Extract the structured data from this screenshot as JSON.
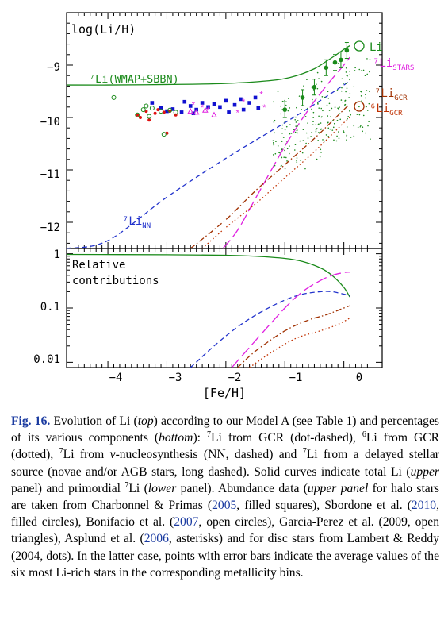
{
  "colors": {
    "total": "#1a8a1a",
    "nn": "#2233cc",
    "stars": "#e020e0",
    "gcr7": "#a03000",
    "gcr6": "#c03000",
    "halo_squares": "#1010d0",
    "red_dots": "#e01010",
    "caption_link": "#1a3aa0"
  },
  "chart_data": [
    {
      "type": "line",
      "panel": "top",
      "xlabel": "[Fe/H]",
      "ylabel": "log(Li/H)",
      "xlim": [
        -4.7,
        0.65
      ],
      "ylim": [
        -12.5,
        -8.0
      ],
      "x_ticks": [
        "-4",
        "-3",
        "-2",
        "-1",
        "0"
      ],
      "y_ticks": [
        "-9",
        "-10",
        "-11",
        "-12"
      ],
      "series": [
        {
          "name": "⁷Li(WMAP+SBBN)",
          "style": "solid",
          "color": "#1a8a1a",
          "x": [
            -4.7,
            -4.0,
            -3.0,
            -2.0,
            -1.2,
            -0.8,
            -0.5,
            -0.3,
            -0.1,
            0.0,
            0.1
          ],
          "y": [
            -9.38,
            -9.38,
            -9.37,
            -9.35,
            -9.29,
            -9.2,
            -9.07,
            -8.93,
            -8.78,
            -8.7,
            -8.63
          ]
        },
        {
          "name": "⁷Li_NN",
          "style": "dashed",
          "color": "#2233cc",
          "x": [
            -4.7,
            -4.0,
            -3.0,
            -2.0,
            -1.0,
            -0.5,
            0.0,
            0.1
          ],
          "y": [
            -12.75,
            -12.35,
            -11.52,
            -10.78,
            -10.1,
            -9.75,
            -9.38,
            -9.3
          ]
        },
        {
          "name": "⁷Li_STARS",
          "style": "longdash",
          "color": "#e020e0",
          "x": [
            -2.05,
            -1.8,
            -1.5,
            -1.0,
            -0.6,
            -0.3,
            0.0,
            0.1
          ],
          "y": [
            -12.5,
            -12.15,
            -11.55,
            -10.55,
            -9.85,
            -9.4,
            -9.0,
            -8.85
          ]
        },
        {
          "name": "⁷Li_GCR",
          "style": "dotdash",
          "color": "#a03000",
          "x": [
            -2.6,
            -2.0,
            -1.5,
            -1.0,
            -0.5,
            0.0,
            0.1
          ],
          "y": [
            -12.5,
            -11.95,
            -11.4,
            -10.9,
            -10.4,
            -9.85,
            -9.75
          ]
        },
        {
          "name": "⁶Li_GCR",
          "style": "dotted",
          "color": "#c03000",
          "x": [
            -2.4,
            -2.0,
            -1.5,
            -1.0,
            -0.5,
            0.0,
            0.1
          ],
          "y": [
            -12.5,
            -12.1,
            -11.65,
            -11.15,
            -10.65,
            -10.1,
            -10.0
          ]
        }
      ],
      "data_sets": [
        {
          "name": "Charbonnel & Primas (2005)",
          "marker": "filled-square",
          "points": [
            [
              -3.25,
              -9.72
            ],
            [
              -3.1,
              -9.82
            ],
            [
              -3.0,
              -9.88
            ],
            [
              -2.9,
              -9.84
            ],
            [
              -2.75,
              -9.9
            ],
            [
              -2.6,
              -9.78
            ],
            [
              -2.5,
              -9.85
            ],
            [
              -2.4,
              -9.72
            ],
            [
              -2.3,
              -9.8
            ],
            [
              -2.2,
              -9.74
            ],
            [
              -2.1,
              -9.8
            ],
            [
              -2.0,
              -9.68
            ],
            [
              -1.95,
              -9.9
            ],
            [
              -1.85,
              -9.76
            ],
            [
              -1.75,
              -9.65
            ],
            [
              -1.7,
              -9.85
            ],
            [
              -1.6,
              -9.72
            ],
            [
              -1.5,
              -9.62
            ],
            [
              -1.45,
              -9.82
            ],
            [
              -2.7,
              -9.7
            ],
            [
              -2.55,
              -9.92
            ]
          ]
        },
        {
          "name": "Sbordone et al. (2010)",
          "marker": "filled-circle",
          "points": [
            [
              -3.5,
              -9.95
            ],
            [
              -3.45,
              -10.0
            ],
            [
              -3.35,
              -9.88
            ],
            [
              -3.3,
              -10.05
            ],
            [
              -3.2,
              -9.92
            ],
            [
              -3.15,
              -9.85
            ],
            [
              -3.05,
              -9.9
            ],
            [
              -3.0,
              -10.3
            ],
            [
              -2.95,
              -9.88
            ],
            [
              -2.85,
              -9.95
            ]
          ]
        },
        {
          "name": "Bonifacio et al. (2007)",
          "marker": "open-circle",
          "points": [
            [
              -3.9,
              -9.62
            ],
            [
              -3.5,
              -9.95
            ],
            [
              -3.4,
              -9.85
            ],
            [
              -3.3,
              -9.98
            ],
            [
              -3.25,
              -9.82
            ],
            [
              -3.1,
              -9.88
            ],
            [
              -3.05,
              -10.32
            ],
            [
              -2.95,
              -9.86
            ],
            [
              -2.85,
              -9.9
            ],
            [
              -3.35,
              -9.78
            ]
          ]
        },
        {
          "name": "Garcia-Perez et al. (2009)",
          "marker": "open-triangle",
          "points": [
            [
              -2.2,
              -9.95
            ],
            [
              -2.35,
              -9.86
            ],
            [
              -2.5,
              -9.9
            ],
            [
              -2.6,
              -9.88
            ]
          ]
        },
        {
          "name": "Asplund et al. (2006)",
          "marker": "asterisk",
          "points": [
            [
              -2.55,
              -9.75
            ],
            [
              -2.3,
              -9.85
            ],
            [
              -1.7,
              -9.7
            ],
            [
              -1.4,
              -9.55
            ],
            [
              -1.35,
              -9.8
            ],
            [
              -1.8,
              -9.9
            ],
            [
              -2.4,
              -9.8
            ]
          ]
        },
        {
          "name": "Lambert & Reddy (2004)",
          "marker": "dot",
          "note": "disc stars, cloud of points between [Fe/H] -1.2 and 0.4"
        },
        {
          "name": "Most Li-rich averages",
          "marker": "filled-circle-errorbar",
          "points": [
            [
              -1.0,
              -9.85
            ],
            [
              -0.7,
              -9.62
            ],
            [
              -0.5,
              -9.42
            ],
            [
              -0.3,
              -9.05
            ],
            [
              -0.15,
              -8.95
            ],
            [
              -0.05,
              -8.9
            ],
            [
              0.05,
              -8.72
            ]
          ]
        }
      ],
      "annotations": [
        {
          "text": "⁷Li(WMAP+SBBN)"
        },
        {
          "text": "Li",
          "marker": "open-circle"
        },
        {
          "text": "⁷Li",
          "sub": "STARS"
        },
        {
          "text": "⁷Li",
          "sub": "GCR"
        },
        {
          "text": "⁶Li",
          "sub": "GCR",
          "marker": "open-circle"
        },
        {
          "text": "⁷Li",
          "sub": "NN"
        }
      ]
    },
    {
      "type": "line",
      "panel": "bottom",
      "xlabel": "[Fe/H]",
      "ylabel": "",
      "scale": "log",
      "xlim": [
        -4.7,
        0.65
      ],
      "ylim": [
        0.008,
        1.25
      ],
      "y_ticks": [
        "1",
        "0.1",
        "0.01"
      ],
      "series": [
        {
          "name": "primordial ⁷Li",
          "style": "solid",
          "color": "#1a8a1a",
          "x": [
            -4.7,
            -3.0,
            -2.0,
            -1.5,
            -1.0,
            -0.7,
            -0.4,
            -0.2,
            0.0,
            0.1
          ],
          "y": [
            0.97,
            0.96,
            0.94,
            0.9,
            0.82,
            0.72,
            0.55,
            0.4,
            0.24,
            0.16
          ]
        },
        {
          "name": "⁷Li_NN",
          "style": "dashed",
          "color": "#2233cc",
          "x": [
            -2.6,
            -2.2,
            -1.8,
            -1.4,
            -1.0,
            -0.7,
            -0.4,
            -0.2,
            0.0,
            0.1
          ],
          "y": [
            0.008,
            0.02,
            0.045,
            0.085,
            0.14,
            0.18,
            0.2,
            0.2,
            0.18,
            0.17
          ]
        },
        {
          "name": "⁷Li_STARS",
          "style": "longdash",
          "color": "#e020e0",
          "x": [
            -1.9,
            -1.5,
            -1.0,
            -0.7,
            -0.4,
            -0.2,
            0.0,
            0.1
          ],
          "y": [
            0.008,
            0.025,
            0.1,
            0.2,
            0.32,
            0.4,
            0.45,
            0.46
          ]
        },
        {
          "name": "⁷Li_GCR",
          "style": "dotdash",
          "color": "#a03000",
          "x": [
            -1.8,
            -1.5,
            -1.0,
            -0.6,
            -0.3,
            0.0,
            0.1
          ],
          "y": [
            0.008,
            0.016,
            0.038,
            0.06,
            0.075,
            0.1,
            0.11
          ]
        },
        {
          "name": "⁶Li_GCR",
          "style": "dotted",
          "color": "#c03000",
          "x": [
            -1.6,
            -1.2,
            -0.8,
            -0.4,
            -0.1,
            0.1
          ],
          "y": [
            0.008,
            0.016,
            0.028,
            0.038,
            0.05,
            0.065
          ]
        }
      ]
    }
  ],
  "figure": {
    "top_ylabel": "log(Li/H)",
    "bottom_label_line1": "Relative",
    "bottom_label_line2": "contributions",
    "xlabel": "[Fe/H]",
    "x_ticks": [
      "−4",
      "−3",
      "−2",
      "−1",
      "0"
    ],
    "top_y_ticks": [
      "−9",
      "−10",
      "−11",
      "−12"
    ],
    "bottom_y_ticks": [
      "1",
      "0.1",
      "0.01"
    ],
    "label_wmap": "⁷Li(WMAP+SBBN)",
    "label_li": "Li",
    "label_stars_main": "⁷Li",
    "label_stars_sub": "STARS",
    "label_gcr7_main": "⁷Li",
    "label_gcr7_sub": "GCR",
    "label_gcr6_main": "⁶Li",
    "label_gcr6_sub": "GCR",
    "label_nn_main": "⁷Li",
    "label_nn_sub": "NN"
  },
  "caption": {
    "fig_label": "Fig. 16.",
    "t1": " Evolution of Li (",
    "top": "top",
    "t2": ") according to our Model A (see Table 1) and percentages of its various components (",
    "bottom": "bottom",
    "t3": "): ",
    "sup7a": "7",
    "t4": "Li from GCR (dot-dashed), ",
    "sup6": "6",
    "t5": "Li from GCR (dotted), ",
    "sup7b": "7",
    "t6": "Li from ",
    "nu": "ν",
    "t7": "-nucleosynthesis (NN, dashed) and ",
    "sup7c": "7",
    "t8": "Li from a delayed stellar source (novae and/or AGB stars, long dashed). Solid curves indicate total Li (",
    "upper": "upper",
    "t9": " panel) and primordial ",
    "sup7d": "7",
    "t10": "Li (",
    "lower": "lower",
    "t11": " panel). Abundance data (",
    "upper_panel": "upper panel",
    "t12": " for halo stars are taken from Charbonnel & Primas (",
    "c1": "2005",
    "t13": ", filled squares), Sbordone et al. (",
    "c2": "2010",
    "t14": ", filled circles), Bonifacio et al. (",
    "c3": "2007",
    "t15": ", open circles), Garcia-Perez et al. (2009, open triangles), Asplund et al. (",
    "c4": "2006",
    "t16": ", asterisks) and for disc stars from Lambert & Reddy (2004, dots). In the latter case, points with error bars indicate the average values of the six most Li-rich stars in the corresponding metallicity bins."
  }
}
